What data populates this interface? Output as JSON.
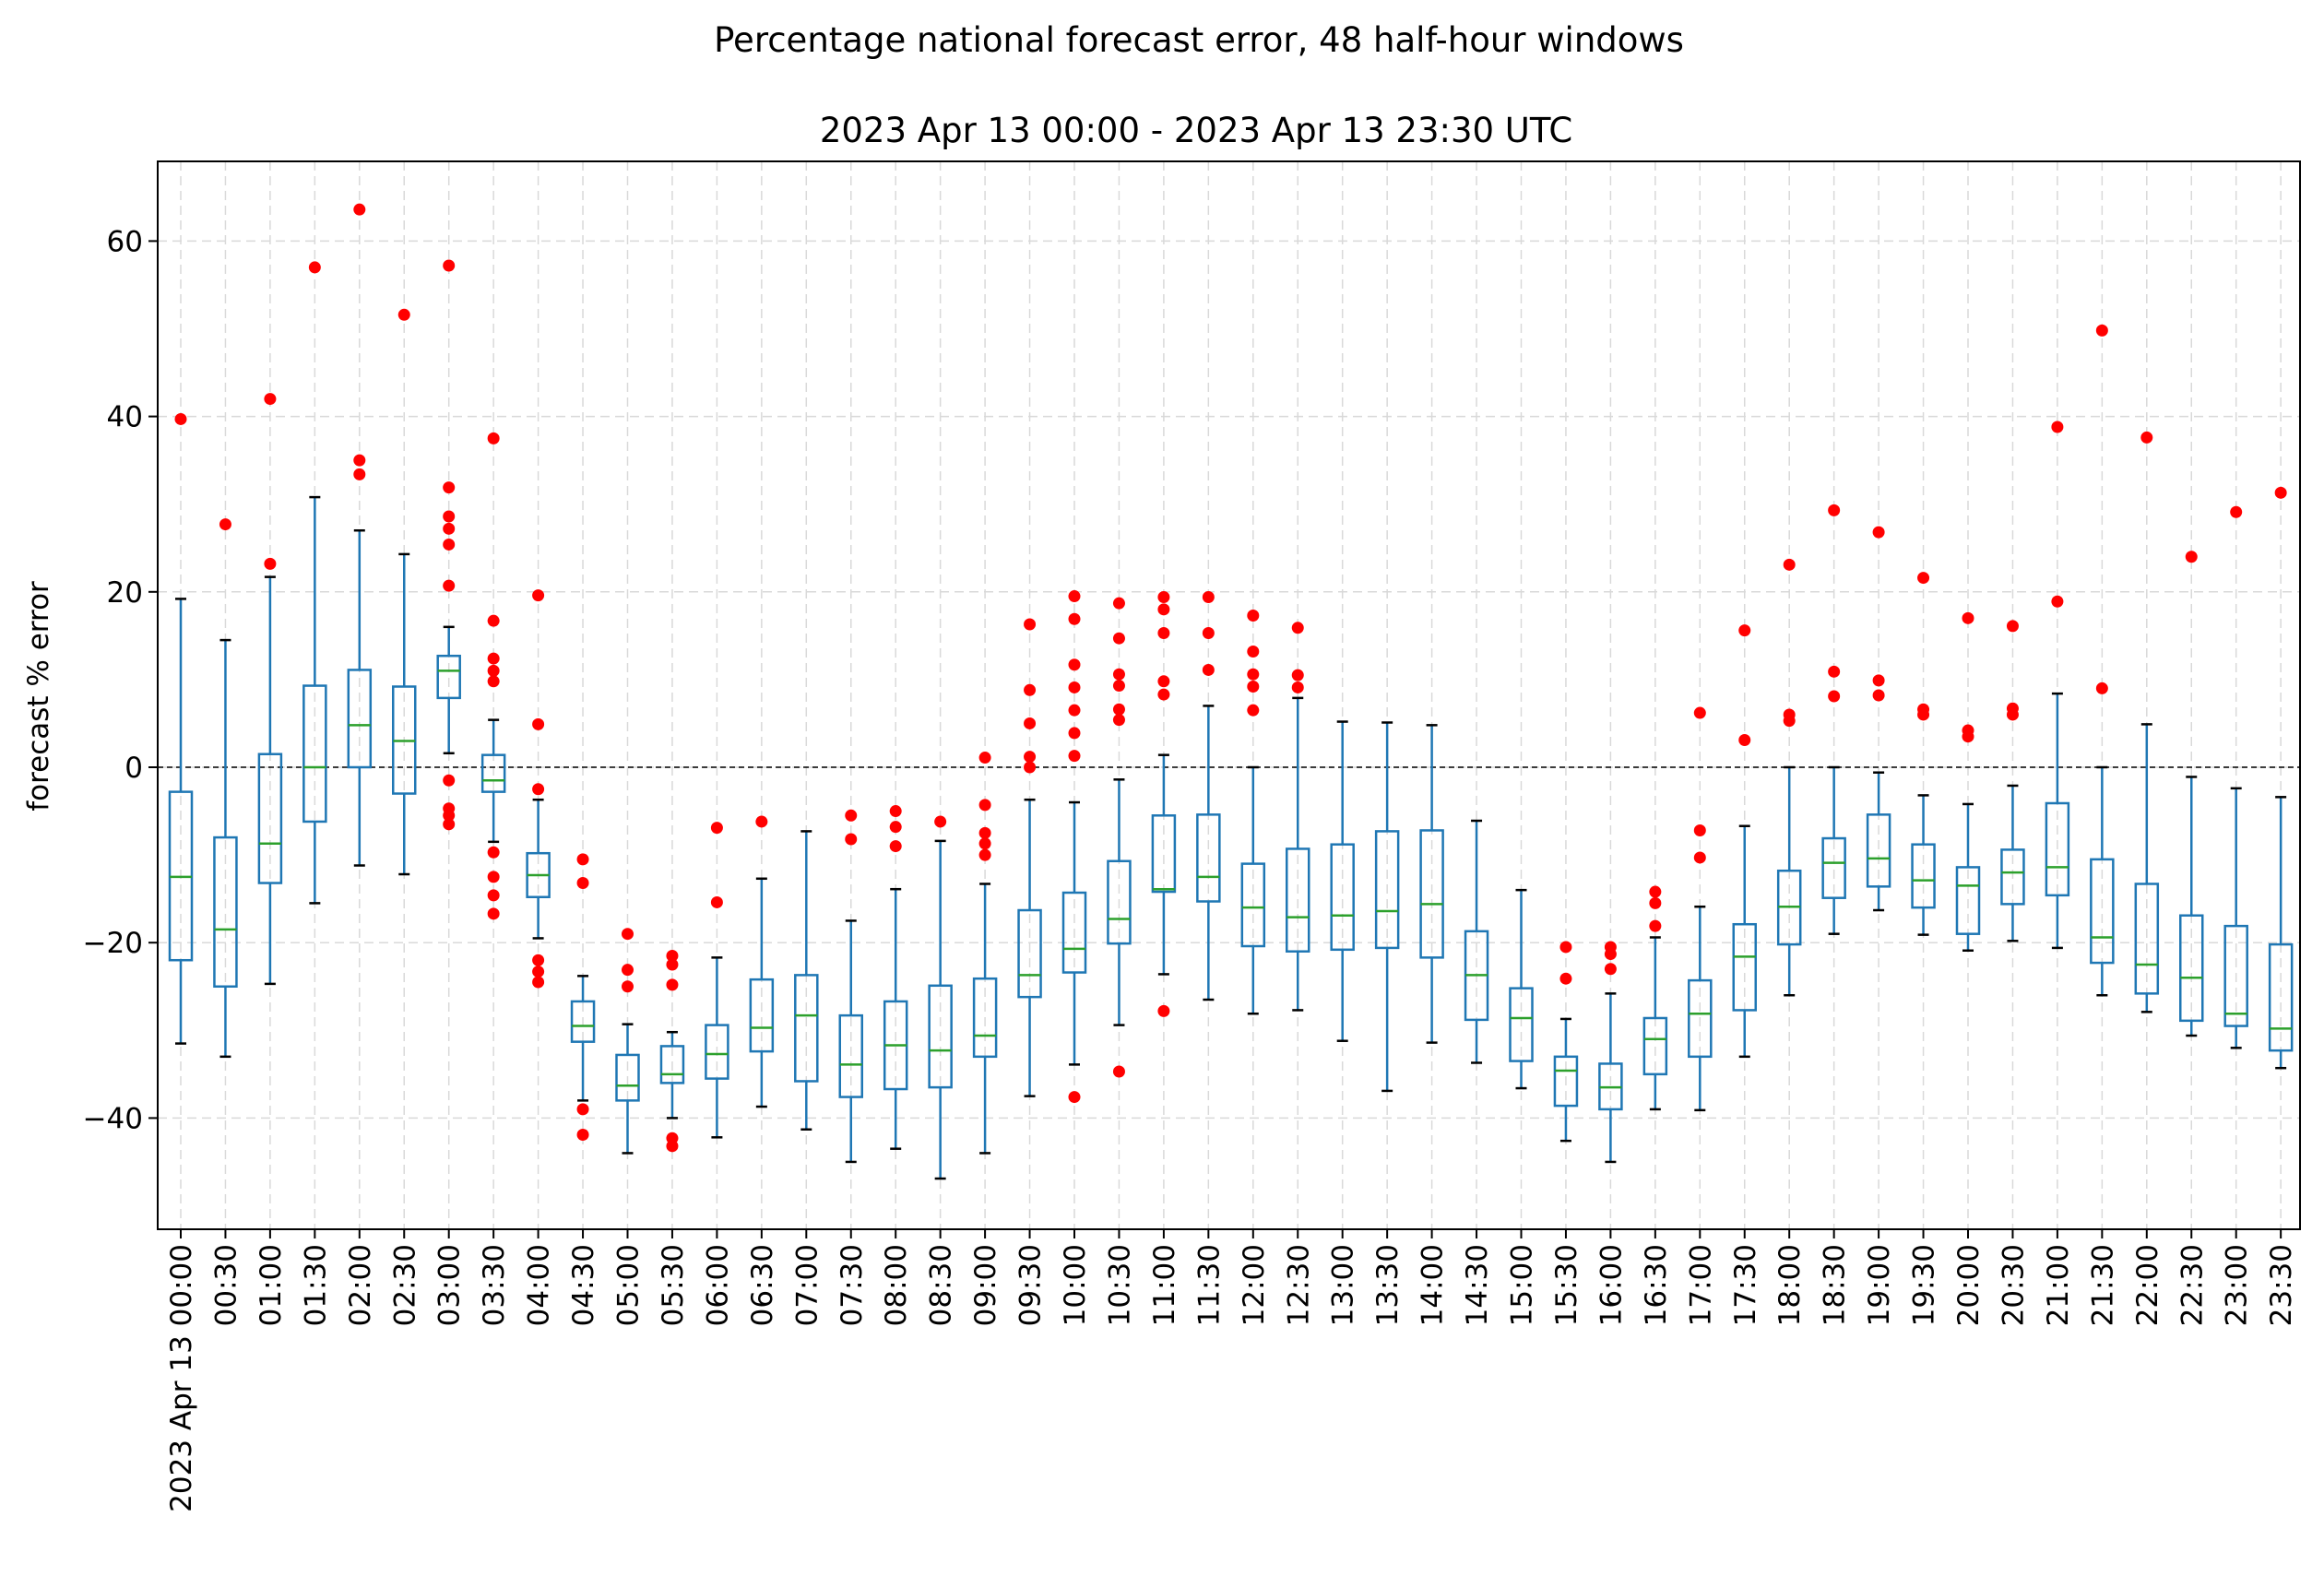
{
  "chart_data": {
    "type": "box",
    "title": "Percentage national forecast error, 48 half-hour windows",
    "subtitle": "2023 Apr 13 00:00 - 2023 Apr 13 23:30 UTC",
    "xlabel": "",
    "ylabel": "forecast % error",
    "ylim": [
      -52,
      69
    ],
    "yticks": [
      60,
      40,
      20,
      0,
      -20,
      -40
    ],
    "grid": true,
    "zero_line": true,
    "colors": {
      "box": "#1f77b4",
      "median": "#2ca02c",
      "flier": "#ff0000",
      "whisker_cap": "#000000",
      "grid": "#d9d9d9",
      "zero_line": "#000000"
    },
    "categories": [
      "2023 Apr 13 00:00",
      "00:30",
      "01:00",
      "01:30",
      "02:00",
      "02:30",
      "03:00",
      "03:30",
      "04:00",
      "04:30",
      "05:00",
      "05:30",
      "06:00",
      "06:30",
      "07:00",
      "07:30",
      "08:00",
      "08:30",
      "09:00",
      "09:30",
      "10:00",
      "10:30",
      "11:00",
      "11:30",
      "12:00",
      "12:30",
      "13:00",
      "13:30",
      "14:00",
      "14:30",
      "15:00",
      "15:30",
      "16:00",
      "16:30",
      "17:00",
      "17:30",
      "18:00",
      "18:30",
      "19:00",
      "19:30",
      "20:00",
      "20:30",
      "21:00",
      "21:30",
      "22:00",
      "22:30",
      "23:00",
      "23:30"
    ],
    "boxes": [
      {
        "whislo": -31.5,
        "q1": -22,
        "med": -12.5,
        "q3": -2.8,
        "whishi": 19.2,
        "fliers": [
          39.7
        ]
      },
      {
        "whislo": -33,
        "q1": -25,
        "med": -18.5,
        "q3": -8,
        "whishi": 14.5,
        "fliers": [
          27.7
        ]
      },
      {
        "whislo": -24.7,
        "q1": -13.2,
        "med": -8.7,
        "q3": 1.5,
        "whishi": 21.7,
        "fliers": [
          42,
          23.2
        ]
      },
      {
        "whislo": -15.5,
        "q1": -6.2,
        "med": 0,
        "q3": 9.3,
        "whishi": 30.8,
        "fliers": [
          57
        ]
      },
      {
        "whislo": -11.2,
        "q1": 0,
        "med": 4.8,
        "q3": 11.1,
        "whishi": 27,
        "fliers": [
          63.6,
          35,
          33.4
        ]
      },
      {
        "whislo": -12.2,
        "q1": -3,
        "med": 3,
        "q3": 9.2,
        "whishi": 24.3,
        "fliers": [
          51.6
        ]
      },
      {
        "whislo": 1.6,
        "q1": 7.9,
        "med": 11,
        "q3": 12.7,
        "whishi": 16,
        "fliers": [
          57.2,
          31.9,
          28.6,
          27.2,
          25.4,
          20.7,
          -1.5,
          -4.7,
          -5.5,
          -6.5
        ]
      },
      {
        "whislo": -8.5,
        "q1": -2.8,
        "med": -1.5,
        "q3": 1.4,
        "whishi": 5.4,
        "fliers": [
          37.5,
          16.7,
          12.4,
          11,
          9.8,
          -9.7,
          -12.5,
          -14.6,
          -16.7
        ]
      },
      {
        "whislo": -19.5,
        "q1": -14.8,
        "med": -12.3,
        "q3": -9.8,
        "whishi": -3.7,
        "fliers": [
          19.6,
          4.9,
          -2.5,
          -22,
          -23.3,
          -24.5
        ]
      },
      {
        "whislo": -38,
        "q1": -31.3,
        "med": -29.5,
        "q3": -26.7,
        "whishi": -23.8,
        "fliers": [
          -10.5,
          -13.2,
          -39,
          -41.9
        ]
      },
      {
        "whislo": -44,
        "q1": -38,
        "med": -36.3,
        "q3": -32.8,
        "whishi": -29.3,
        "fliers": [
          -19,
          -23.1,
          -25
        ]
      },
      {
        "whislo": -40,
        "q1": -36,
        "med": -35,
        "q3": -31.8,
        "whishi": -30.2,
        "fliers": [
          -21.5,
          -22.5,
          -24.8,
          -42.3,
          -43.2
        ]
      },
      {
        "whislo": -42.2,
        "q1": -35.5,
        "med": -32.7,
        "q3": -29.4,
        "whishi": -21.7,
        "fliers": [
          -6.9,
          -15.4
        ]
      },
      {
        "whislo": -38.7,
        "q1": -32.4,
        "med": -29.7,
        "q3": -24.2,
        "whishi": -12.7,
        "fliers": [
          -6.2
        ]
      },
      {
        "whislo": -41.3,
        "q1": -35.8,
        "med": -28.3,
        "q3": -23.7,
        "whishi": -7.3,
        "fliers": []
      },
      {
        "whislo": -45,
        "q1": -37.6,
        "med": -33.9,
        "q3": -28.3,
        "whishi": -17.5,
        "fliers": [
          -5.5,
          -8.2
        ]
      },
      {
        "whislo": -43.5,
        "q1": -36.7,
        "med": -31.7,
        "q3": -26.7,
        "whishi": -13.9,
        "fliers": [
          -5,
          -6.8,
          -9
        ]
      },
      {
        "whislo": -46.9,
        "q1": -36.5,
        "med": -32.3,
        "q3": -24.9,
        "whishi": -8.4,
        "fliers": [
          -6.2
        ]
      },
      {
        "whislo": -44,
        "q1": -33,
        "med": -30.6,
        "q3": -24.1,
        "whishi": -13.3,
        "fliers": [
          1.1,
          -4.3,
          -7.5,
          -8.7,
          -10
        ]
      },
      {
        "whislo": -37.5,
        "q1": -26.2,
        "med": -23.7,
        "q3": -16.3,
        "whishi": -3.7,
        "fliers": [
          16.3,
          8.8,
          5,
          1.2,
          0
        ]
      },
      {
        "whislo": -33.9,
        "q1": -23.4,
        "med": -20.7,
        "q3": -14.3,
        "whishi": -4,
        "fliers": [
          19.5,
          16.9,
          11.7,
          9.1,
          6.5,
          3.9,
          1.3,
          -37.6
        ]
      },
      {
        "whislo": -29.4,
        "q1": -20.1,
        "med": -17.3,
        "q3": -10.7,
        "whishi": -1.4,
        "fliers": [
          18.7,
          14.7,
          10.6,
          9.3,
          6.6,
          5.4,
          -34.7
        ]
      },
      {
        "whislo": -23.6,
        "q1": -14.2,
        "med": -13.9,
        "q3": -5.5,
        "whishi": 1.4,
        "fliers": [
          19.4,
          18,
          15.3,
          9.8,
          8.3,
          -27.8
        ]
      },
      {
        "whislo": -26.5,
        "q1": -15.3,
        "med": -12.5,
        "q3": -5.4,
        "whishi": 7,
        "fliers": [
          19.4,
          15.3,
          11.1
        ]
      },
      {
        "whislo": -28.1,
        "q1": -20.4,
        "med": -16,
        "q3": -11,
        "whishi": 0,
        "fliers": [
          17.3,
          13.2,
          10.6,
          9.2,
          6.5
        ]
      },
      {
        "whislo": -27.7,
        "q1": -21,
        "med": -17.1,
        "q3": -9.3,
        "whishi": 7.9,
        "fliers": [
          15.9,
          10.5,
          9.1
        ]
      },
      {
        "whislo": -31.2,
        "q1": -20.8,
        "med": -16.9,
        "q3": -8.8,
        "whishi": 5.2,
        "fliers": []
      },
      {
        "whislo": -36.9,
        "q1": -20.6,
        "med": -16.4,
        "q3": -7.3,
        "whishi": 5.1,
        "fliers": []
      },
      {
        "whislo": -31.4,
        "q1": -21.7,
        "med": -15.6,
        "q3": -7.2,
        "whishi": 4.8,
        "fliers": []
      },
      {
        "whislo": -33.7,
        "q1": -28.8,
        "med": -23.7,
        "q3": -18.7,
        "whishi": -6.1,
        "fliers": []
      },
      {
        "whislo": -36.6,
        "q1": -33.5,
        "med": -28.6,
        "q3": -25.2,
        "whishi": -14,
        "fliers": []
      },
      {
        "whislo": -42.6,
        "q1": -38.6,
        "med": -34.6,
        "q3": -33,
        "whishi": -28.7,
        "fliers": [
          -20.5,
          -24.1
        ]
      },
      {
        "whislo": -45,
        "q1": -39,
        "med": -36.5,
        "q3": -33.8,
        "whishi": -25.8,
        "fliers": [
          -20.5,
          -21.3,
          -23
        ]
      },
      {
        "whislo": -39,
        "q1": -35,
        "med": -31,
        "q3": -28.6,
        "whishi": -19.4,
        "fliers": [
          -14.2,
          -15.5,
          -18.1
        ]
      },
      {
        "whislo": -39.1,
        "q1": -33,
        "med": -28.1,
        "q3": -24.3,
        "whishi": -15.9,
        "fliers": [
          6.2,
          -7.2,
          -10.3
        ]
      },
      {
        "whislo": -33,
        "q1": -27.7,
        "med": -21.6,
        "q3": -17.9,
        "whishi": -6.7,
        "fliers": [
          15.6,
          3.1
        ]
      },
      {
        "whislo": -26,
        "q1": -20.2,
        "med": -15.9,
        "q3": -11.8,
        "whishi": 0,
        "fliers": [
          23.1,
          6,
          5.3
        ]
      },
      {
        "whislo": -19,
        "q1": -14.9,
        "med": -10.9,
        "q3": -8.1,
        "whishi": 0,
        "fliers": [
          29.3,
          10.9,
          8.1
        ]
      },
      {
        "whislo": -16.3,
        "q1": -13.6,
        "med": -10.4,
        "q3": -5.4,
        "whishi": -0.6,
        "fliers": [
          26.8,
          9.9,
          8.2
        ]
      },
      {
        "whislo": -19.1,
        "q1": -16,
        "med": -12.9,
        "q3": -8.8,
        "whishi": -3.2,
        "fliers": [
          21.6,
          6.6,
          6
        ]
      },
      {
        "whislo": -20.9,
        "q1": -19,
        "med": -13.5,
        "q3": -11.4,
        "whishi": -4.2,
        "fliers": [
          17,
          4.2,
          3.5
        ]
      },
      {
        "whislo": -19.8,
        "q1": -15.6,
        "med": -12,
        "q3": -9.4,
        "whishi": -2.1,
        "fliers": [
          16.1,
          6.7,
          6
        ]
      },
      {
        "whislo": -20.6,
        "q1": -14.6,
        "med": -11.4,
        "q3": -4.1,
        "whishi": 8.4,
        "fliers": [
          38.8,
          18.9
        ]
      },
      {
        "whislo": -26,
        "q1": -22.3,
        "med": -19.4,
        "q3": -10.5,
        "whishi": 0,
        "fliers": [
          49.8,
          9
        ]
      },
      {
        "whislo": -27.9,
        "q1": -25.8,
        "med": -22.5,
        "q3": -13.3,
        "whishi": 4.9,
        "fliers": [
          37.6
        ]
      },
      {
        "whislo": -30.6,
        "q1": -28.9,
        "med": -24,
        "q3": -16.9,
        "whishi": -1.1,
        "fliers": [
          24
        ]
      },
      {
        "whislo": -32,
        "q1": -29.5,
        "med": -28.1,
        "q3": -18.1,
        "whishi": -2.4,
        "fliers": [
          29.1
        ]
      },
      {
        "whislo": -34.3,
        "q1": -32.3,
        "med": -29.8,
        "q3": -20.2,
        "whishi": -3.4,
        "fliers": [
          31.3
        ]
      }
    ]
  }
}
